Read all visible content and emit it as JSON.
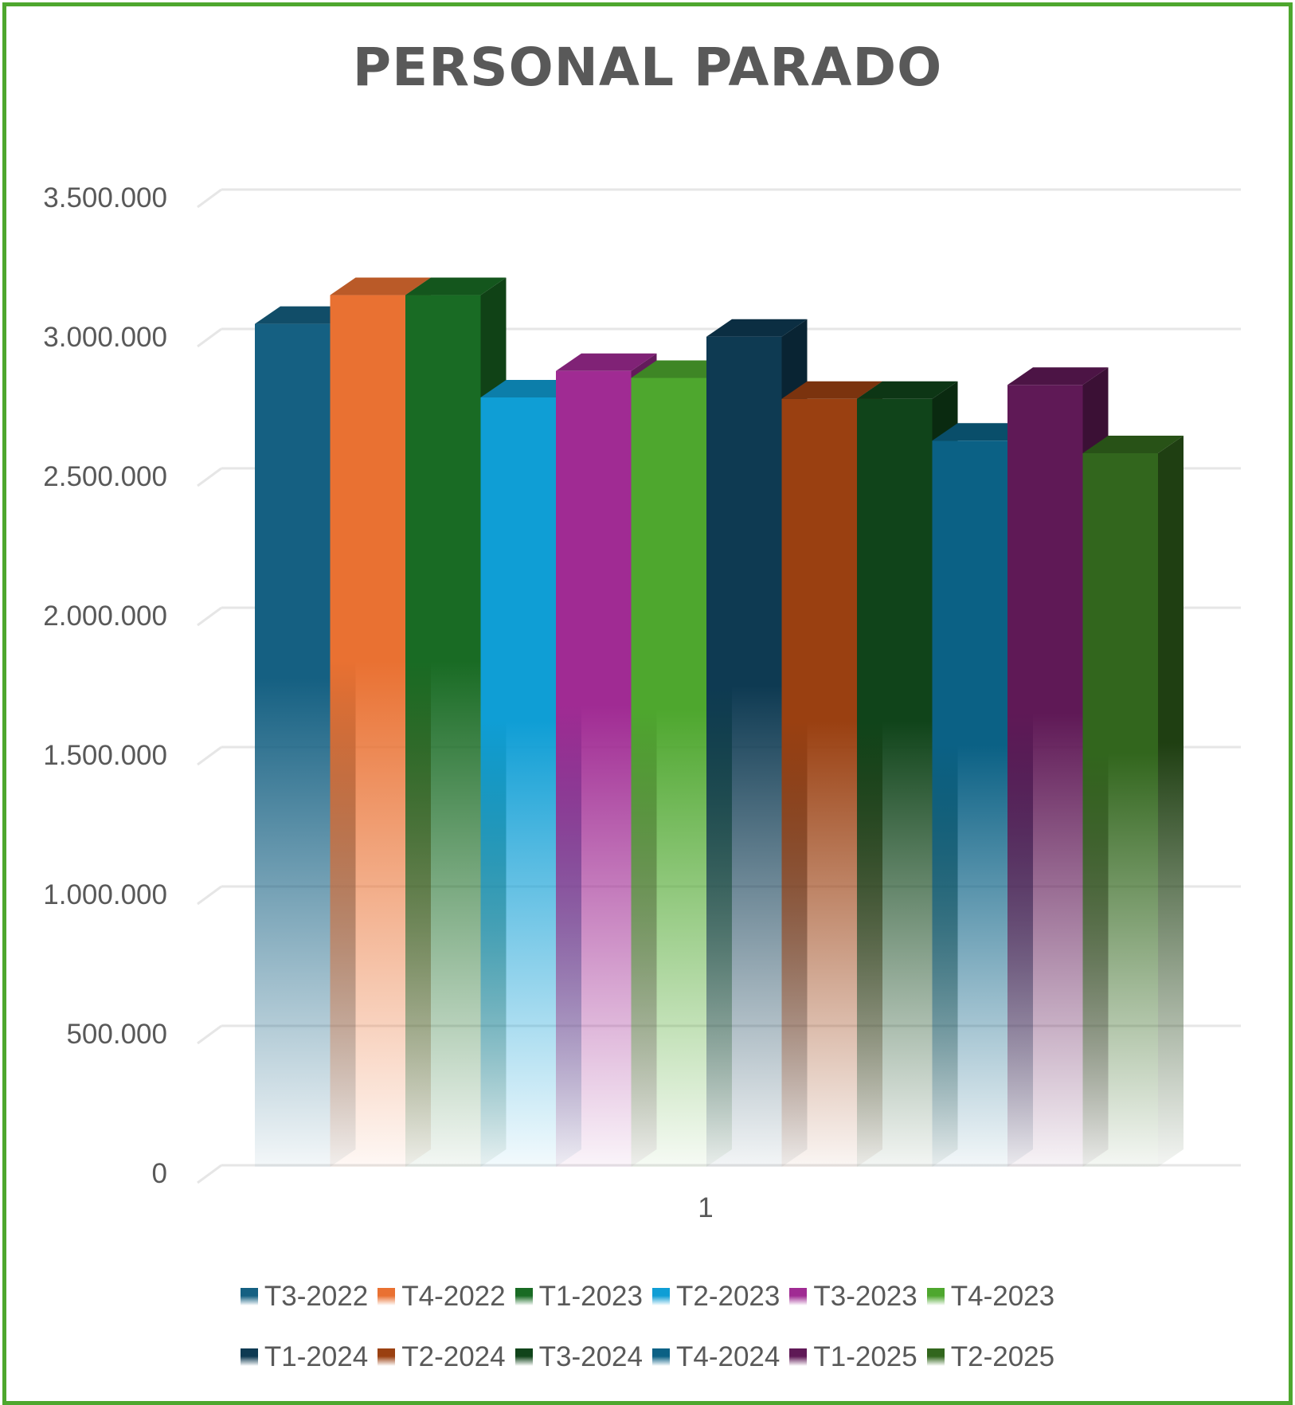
{
  "chart_data": {
    "type": "bar",
    "title": "PERSONAL PARADO",
    "categories": [
      "1"
    ],
    "ylim": [
      0,
      3500000
    ],
    "yticks": [
      0,
      500000,
      1000000,
      1500000,
      2000000,
      2500000,
      3000000,
      3500000
    ],
    "ytick_labels": [
      "0",
      "500.000",
      "1.000.000",
      "1.500.000",
      "2.000.000",
      "2.500.000",
      "3.000.000",
      "3.500.000"
    ],
    "grid": true,
    "legend_position": "bottom",
    "series": [
      {
        "name": "T3-2022",
        "values": [
          3024000
        ],
        "color": "#156082"
      },
      {
        "name": "T4-2022",
        "values": [
          3127000
        ],
        "color": "#e97132"
      },
      {
        "name": "T1-2023",
        "values": [
          3127000
        ],
        "color": "#196b24"
      },
      {
        "name": "T2-2023",
        "values": [
          2760000
        ],
        "color": "#0f9ed5"
      },
      {
        "name": "T3-2023",
        "values": [
          2855000
        ],
        "color": "#a02b93"
      },
      {
        "name": "T4-2023",
        "values": [
          2830000
        ],
        "color": "#4ea72e"
      },
      {
        "name": "T1-2024",
        "values": [
          2978000
        ],
        "color": "#0e3a52"
      },
      {
        "name": "T2-2024",
        "values": [
          2755000
        ],
        "color": "#9a4011"
      },
      {
        "name": "T3-2024",
        "values": [
          2755000
        ],
        "color": "#10441a"
      },
      {
        "name": "T4-2024",
        "values": [
          2605000
        ],
        "color": "#0b6185"
      },
      {
        "name": "T1-2025",
        "values": [
          2805000
        ],
        "color": "#5f1956"
      },
      {
        "name": "T2-2025",
        "values": [
          2560000
        ],
        "color": "#32661d"
      }
    ]
  }
}
